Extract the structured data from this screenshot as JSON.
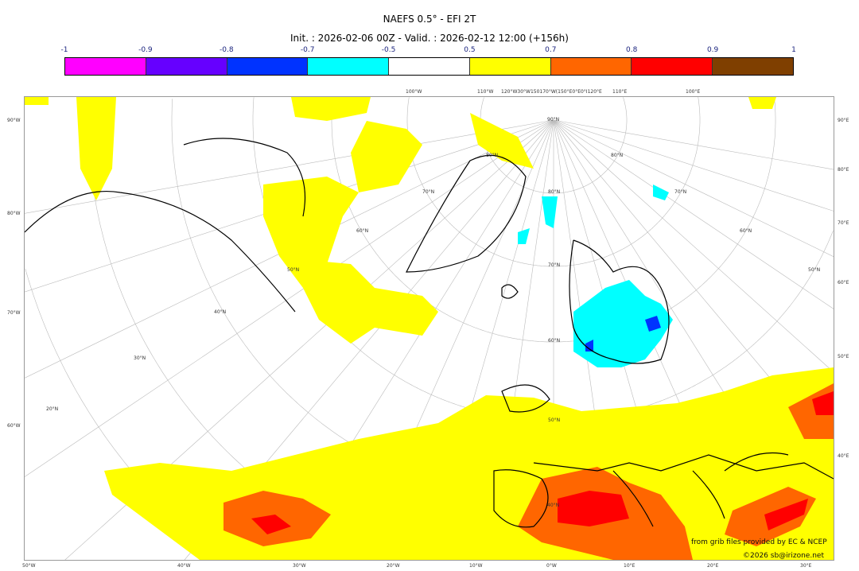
{
  "title": "NAEFS 0.5° - EFI 2T",
  "subtitle": "Init. : 2026-02-06 00Z - Valid. : 2026-02-12 12:00 (+156h)",
  "colorbar": {
    "ticks": [
      "-1",
      "-0.9",
      "-0.8",
      "-0.7",
      "-0.5",
      "0.5",
      "0.7",
      "0.8",
      "0.9",
      "1"
    ],
    "colors": [
      "#ff00ff",
      "#6600ff",
      "#0033ff",
      "#00ffff",
      "#ffffff",
      "#ffff00",
      "#ff6600",
      "#ff0000",
      "#7f3f00"
    ]
  },
  "map": {
    "left_labels": [
      "90°W",
      "80°W",
      "70°W",
      "60°W"
    ],
    "right_labels": [
      "90°E",
      "80°E",
      "70°E",
      "60°E",
      "50°E",
      "40°E"
    ],
    "bottom_labels": [
      "50°W",
      "40°W",
      "30°W",
      "20°W",
      "10°W",
      "0°W",
      "10°E",
      "20°E",
      "30°E"
    ],
    "top_labels": [
      "100°W",
      "110°W",
      "120°W30°W150170°W(150°E0°E0°I120°E",
      "110°E",
      "100°E"
    ],
    "lat_labels": [
      "90°N",
      "80°N",
      "70°N",
      "60°N",
      "50°N",
      "40°N"
    ],
    "lat_labels_left": [
      "80°N",
      "70°N",
      "60°N",
      "50°N",
      "40°N",
      "30°N",
      "20°N"
    ],
    "lat_labels_right": [
      "80°N",
      "70°N",
      "60°N",
      "50°N"
    ]
  },
  "credits": {
    "source": "from grib files provided by EC & NCEP",
    "copyright": "©2026 sb@irizone.net"
  }
}
